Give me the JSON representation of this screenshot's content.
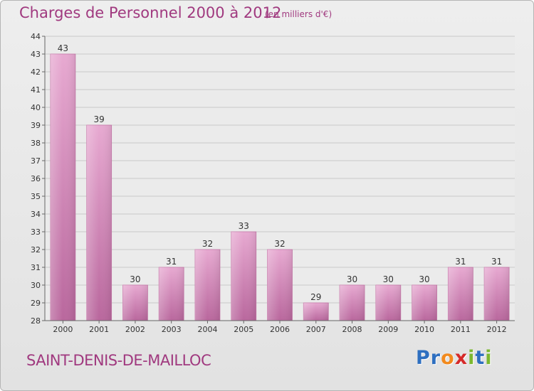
{
  "header": {
    "title": "Charges de Personnel 2000 à 2012",
    "subtitle": "(en milliers d'€)"
  },
  "footer": {
    "commune": "SAINT-DENIS-DE-MAILLOC",
    "logo_letters": [
      "P",
      "r",
      "o",
      "x",
      "i",
      "t",
      "i"
    ],
    "logo_colors": [
      "#2e6fc0",
      "#2e6fc0",
      "#f28a1e",
      "#d52a2a",
      "#7cb82f",
      "#2e6fc0",
      "#7cb82f"
    ]
  },
  "chart_data": {
    "type": "bar",
    "title": "Charges de Personnel 2000 à 2012",
    "subtitle": "(en milliers d'€)",
    "categories": [
      "2000",
      "2001",
      "2002",
      "2003",
      "2004",
      "2005",
      "2006",
      "2007",
      "2008",
      "2009",
      "2010",
      "2011",
      "2012"
    ],
    "values": [
      43,
      39,
      30,
      31,
      32,
      33,
      32,
      29,
      30,
      30,
      30,
      31,
      31
    ],
    "ylim": [
      28,
      44
    ],
    "yticks": [
      28,
      29,
      30,
      31,
      32,
      33,
      34,
      35,
      36,
      37,
      38,
      39,
      40,
      41,
      42,
      43,
      44
    ],
    "grid": true,
    "bar_color": "#d88bbd",
    "text_color": "#a0397f"
  }
}
